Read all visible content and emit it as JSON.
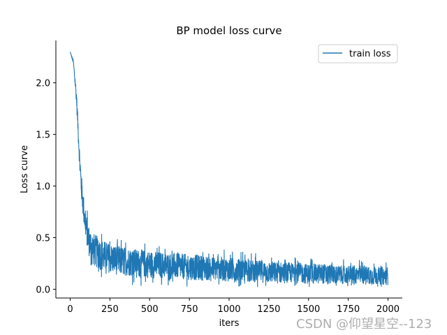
{
  "chart_data": {
    "type": "line",
    "title": "BP model loss curve",
    "xlabel": "iters",
    "ylabel": "Loss curve",
    "xlim": [
      -90,
      2090
    ],
    "ylim": [
      -0.085,
      2.41
    ],
    "x_ticks": [
      0,
      250,
      500,
      750,
      1000,
      1250,
      1500,
      1750,
      2000
    ],
    "y_ticks": [
      0.0,
      0.5,
      1.0,
      1.5,
      2.0
    ],
    "x_tick_labels": [
      "0",
      "250",
      "500",
      "750",
      "1000",
      "1250",
      "1500",
      "1750",
      "2000"
    ],
    "y_tick_labels": [
      "0.0",
      "0.5",
      "1.0",
      "1.5",
      "2.0"
    ],
    "legend": {
      "position": "top-right",
      "entries": [
        "train loss"
      ]
    },
    "series": [
      {
        "name": "train loss",
        "color": "#1f77b4",
        "description": "noisy decreasing loss; mean trend approximated by anchor points, noise band shown",
        "x": [
          0,
          20,
          40,
          50,
          60,
          70,
          80,
          90,
          100,
          110,
          120,
          130,
          150,
          200,
          250,
          300,
          400,
          500,
          600,
          700,
          800,
          900,
          1000,
          1100,
          1200,
          1300,
          1400,
          1500,
          1600,
          1700,
          1800,
          1900,
          2000
        ],
        "values": [
          2.3,
          2.2,
          1.85,
          1.55,
          1.25,
          1.0,
          0.85,
          0.7,
          0.6,
          0.52,
          0.46,
          0.42,
          0.38,
          0.33,
          0.3,
          0.28,
          0.26,
          0.24,
          0.23,
          0.22,
          0.21,
          0.2,
          0.19,
          0.18,
          0.17,
          0.16,
          0.16,
          0.15,
          0.15,
          0.14,
          0.14,
          0.13,
          0.13
        ],
        "noise_amplitude": [
          0.0,
          0.03,
          0.08,
          0.1,
          0.12,
          0.14,
          0.15,
          0.15,
          0.15,
          0.16,
          0.17,
          0.18,
          0.18,
          0.17,
          0.16,
          0.16,
          0.15,
          0.15,
          0.14,
          0.14,
          0.14,
          0.13,
          0.13,
          0.12,
          0.12,
          0.12,
          0.11,
          0.11,
          0.11,
          0.1,
          0.1,
          0.1,
          0.1
        ],
        "num_points": 2000
      }
    ]
  },
  "watermark": "CSDN @仰望星空--123"
}
